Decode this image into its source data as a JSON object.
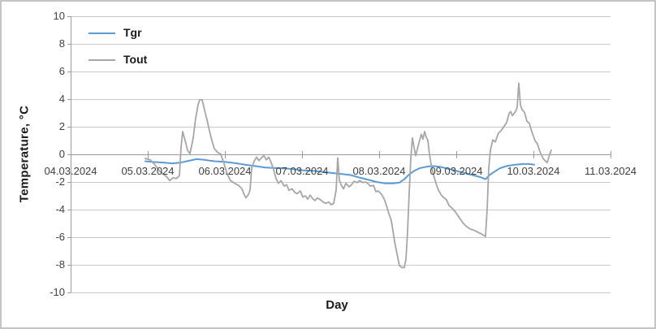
{
  "chart_data": {
    "type": "line",
    "title": "",
    "xlabel": "Day",
    "ylabel": "Temperature, °C",
    "x_tick_labels": [
      "04.03.2024",
      "05.03.2024",
      "06.03.2024",
      "07.03.2024",
      "08.03.2024",
      "09.03.2024",
      "10.03.2024",
      "11.03.2024"
    ],
    "y_ticks": [
      10,
      8,
      6,
      4,
      2,
      0,
      -2,
      -4,
      -6,
      -8,
      -10
    ],
    "ylim": [
      -10,
      10
    ],
    "x_range_days": [
      0,
      7
    ],
    "grid": "horizontal",
    "legend_position": "top-left-inside",
    "axis_note": "x labels sit below the zero line; series are dense sub-daily temperature traces from ~05.03 to ~10.03",
    "series": [
      {
        "name": "Tgr",
        "color": "#5B9BD5",
        "points": [
          [
            0.968,
            -0.5
          ],
          [
            1.053,
            -0.55
          ],
          [
            1.211,
            -0.6
          ],
          [
            1.316,
            -0.65
          ],
          [
            1.421,
            -0.6
          ],
          [
            1.505,
            -0.5
          ],
          [
            1.632,
            -0.35
          ],
          [
            1.737,
            -0.4
          ],
          [
            1.863,
            -0.5
          ],
          [
            2.0,
            -0.55
          ],
          [
            2.158,
            -0.65
          ],
          [
            2.263,
            -0.75
          ],
          [
            2.389,
            -0.85
          ],
          [
            2.526,
            -0.95
          ],
          [
            2.684,
            -1.0
          ],
          [
            2.842,
            -1.05
          ],
          [
            3.0,
            -1.15
          ],
          [
            3.158,
            -1.2
          ],
          [
            3.316,
            -1.3
          ],
          [
            3.474,
            -1.4
          ],
          [
            3.632,
            -1.5
          ],
          [
            3.758,
            -1.7
          ],
          [
            3.863,
            -1.85
          ],
          [
            3.968,
            -2.0
          ],
          [
            4.074,
            -2.1
          ],
          [
            4.179,
            -2.1
          ],
          [
            4.263,
            -2.05
          ],
          [
            4.326,
            -1.8
          ],
          [
            4.389,
            -1.45
          ],
          [
            4.453,
            -1.2
          ],
          [
            4.526,
            -1.0
          ],
          [
            4.611,
            -0.9
          ],
          [
            4.684,
            -0.85
          ],
          [
            4.789,
            -0.9
          ],
          [
            4.895,
            -1.05
          ],
          [
            5.0,
            -1.2
          ],
          [
            5.105,
            -1.35
          ],
          [
            5.211,
            -1.5
          ],
          [
            5.316,
            -1.65
          ],
          [
            5.379,
            -1.8
          ],
          [
            5.432,
            -1.5
          ],
          [
            5.495,
            -1.25
          ],
          [
            5.568,
            -1.0
          ],
          [
            5.653,
            -0.85
          ],
          [
            5.758,
            -0.75
          ],
          [
            5.863,
            -0.7
          ],
          [
            5.947,
            -0.7
          ],
          [
            6.011,
            -0.75
          ]
        ]
      },
      {
        "name": "Tout",
        "color": "#A6A6A6",
        "points": [
          [
            0.968,
            -0.3
          ],
          [
            1.032,
            -0.4
          ],
          [
            1.084,
            -0.7
          ],
          [
            1.137,
            -1.1
          ],
          [
            1.189,
            -1.4
          ],
          [
            1.242,
            -1.6
          ],
          [
            1.284,
            -1.9
          ],
          [
            1.326,
            -1.7
          ],
          [
            1.368,
            -1.75
          ],
          [
            1.411,
            -1.55
          ],
          [
            1.432,
            0.5
          ],
          [
            1.453,
            1.65
          ],
          [
            1.484,
            1.0
          ],
          [
            1.516,
            0.3
          ],
          [
            1.547,
            0.05
          ],
          [
            1.589,
            1.2
          ],
          [
            1.621,
            2.6
          ],
          [
            1.653,
            3.6
          ],
          [
            1.674,
            3.95
          ],
          [
            1.705,
            3.95
          ],
          [
            1.737,
            3.2
          ],
          [
            1.768,
            2.5
          ],
          [
            1.8,
            1.7
          ],
          [
            1.832,
            1.0
          ],
          [
            1.863,
            0.4
          ],
          [
            1.905,
            0.15
          ],
          [
            1.947,
            0.0
          ],
          [
            1.989,
            -0.7
          ],
          [
            2.032,
            -1.45
          ],
          [
            2.074,
            -1.9
          ],
          [
            2.126,
            -2.1
          ],
          [
            2.179,
            -2.25
          ],
          [
            2.221,
            -2.5
          ],
          [
            2.253,
            -2.95
          ],
          [
            2.274,
            -3.15
          ],
          [
            2.305,
            -2.9
          ],
          [
            2.326,
            -2.6
          ],
          [
            2.347,
            -1.0
          ],
          [
            2.379,
            -0.5
          ],
          [
            2.411,
            -0.2
          ],
          [
            2.442,
            -0.45
          ],
          [
            2.474,
            -0.25
          ],
          [
            2.505,
            -0.1
          ],
          [
            2.537,
            -0.4
          ],
          [
            2.568,
            -0.2
          ],
          [
            2.6,
            -0.6
          ],
          [
            2.632,
            -1.1
          ],
          [
            2.663,
            -1.75
          ],
          [
            2.695,
            -2.1
          ],
          [
            2.726,
            -1.9
          ],
          [
            2.768,
            -2.3
          ],
          [
            2.8,
            -2.2
          ],
          [
            2.832,
            -2.6
          ],
          [
            2.874,
            -2.5
          ],
          [
            2.905,
            -2.75
          ],
          [
            2.937,
            -2.85
          ],
          [
            2.979,
            -2.65
          ],
          [
            3.011,
            -3.1
          ],
          [
            3.042,
            -3.0
          ],
          [
            3.074,
            -3.25
          ],
          [
            3.105,
            -2.95
          ],
          [
            3.137,
            -3.2
          ],
          [
            3.168,
            -3.35
          ],
          [
            3.2,
            -3.15
          ],
          [
            3.242,
            -3.3
          ],
          [
            3.274,
            -3.45
          ],
          [
            3.305,
            -3.55
          ],
          [
            3.347,
            -3.45
          ],
          [
            3.379,
            -3.65
          ],
          [
            3.411,
            -3.55
          ],
          [
            3.442,
            -2.6
          ],
          [
            3.463,
            -0.25
          ],
          [
            3.484,
            -1.9
          ],
          [
            3.516,
            -2.3
          ],
          [
            3.537,
            -2.5
          ],
          [
            3.568,
            -2.1
          ],
          [
            3.611,
            -2.35
          ],
          [
            3.642,
            -2.2
          ],
          [
            3.674,
            -1.95
          ],
          [
            3.716,
            -2.05
          ],
          [
            3.747,
            -1.9
          ],
          [
            3.789,
            -2.05
          ],
          [
            3.821,
            -2.0
          ],
          [
            3.853,
            -2.1
          ],
          [
            3.884,
            -2.3
          ],
          [
            3.926,
            -2.25
          ],
          [
            3.958,
            -2.7
          ],
          [
            3.989,
            -2.65
          ],
          [
            4.032,
            -2.9
          ],
          [
            4.063,
            -3.2
          ],
          [
            4.095,
            -3.7
          ],
          [
            4.126,
            -4.3
          ],
          [
            4.158,
            -4.8
          ],
          [
            4.2,
            -6.3
          ],
          [
            4.232,
            -7.2
          ],
          [
            4.263,
            -8.05
          ],
          [
            4.295,
            -8.2
          ],
          [
            4.326,
            -8.2
          ],
          [
            4.347,
            -7.6
          ],
          [
            4.368,
            -5.6
          ],
          [
            4.389,
            -2.8
          ],
          [
            4.411,
            -0.3
          ],
          [
            4.432,
            1.2
          ],
          [
            4.453,
            0.5
          ],
          [
            4.474,
            -0.1
          ],
          [
            4.505,
            0.6
          ],
          [
            4.526,
            1.05
          ],
          [
            4.547,
            1.45
          ],
          [
            4.568,
            1.1
          ],
          [
            4.589,
            1.65
          ],
          [
            4.611,
            1.25
          ],
          [
            4.632,
            1.0
          ],
          [
            4.653,
            0.0
          ],
          [
            4.674,
            -0.7
          ],
          [
            4.705,
            -1.5
          ],
          [
            4.737,
            -2.1
          ],
          [
            4.768,
            -2.6
          ],
          [
            4.8,
            -2.9
          ],
          [
            4.832,
            -3.1
          ],
          [
            4.874,
            -3.3
          ],
          [
            4.905,
            -3.7
          ],
          [
            4.937,
            -3.85
          ],
          [
            4.979,
            -4.1
          ],
          [
            5.011,
            -4.35
          ],
          [
            5.042,
            -4.6
          ],
          [
            5.084,
            -4.95
          ],
          [
            5.126,
            -5.2
          ],
          [
            5.179,
            -5.4
          ],
          [
            5.232,
            -5.5
          ],
          [
            5.284,
            -5.65
          ],
          [
            5.337,
            -5.8
          ],
          [
            5.379,
            -5.95
          ],
          [
            5.4,
            -4.0
          ],
          [
            5.421,
            -1.0
          ],
          [
            5.442,
            0.3
          ],
          [
            5.474,
            1.05
          ],
          [
            5.505,
            0.9
          ],
          [
            5.547,
            1.55
          ],
          [
            5.579,
            1.7
          ],
          [
            5.611,
            1.95
          ],
          [
            5.653,
            2.3
          ],
          [
            5.684,
            2.95
          ],
          [
            5.705,
            3.1
          ],
          [
            5.726,
            2.8
          ],
          [
            5.768,
            3.1
          ],
          [
            5.789,
            3.4
          ],
          [
            5.811,
            5.15
          ],
          [
            5.832,
            3.6
          ],
          [
            5.853,
            3.25
          ],
          [
            5.884,
            3.05
          ],
          [
            5.916,
            2.4
          ],
          [
            5.947,
            2.25
          ],
          [
            5.979,
            1.65
          ],
          [
            6.021,
            1.0
          ],
          [
            6.053,
            0.75
          ],
          [
            6.084,
            0.2
          ],
          [
            6.126,
            -0.3
          ],
          [
            6.158,
            -0.5
          ],
          [
            6.179,
            -0.6
          ],
          [
            6.211,
            0.0
          ],
          [
            6.232,
            0.3
          ]
        ]
      }
    ]
  },
  "colors": {
    "background": "#ffffff",
    "frame_border": "#c3c3c3",
    "gridline": "#c9c9c9",
    "axis_line": "#9b9b9b",
    "tick_label": "#3f3f3f",
    "axis_title": "#1a1a1a"
  }
}
